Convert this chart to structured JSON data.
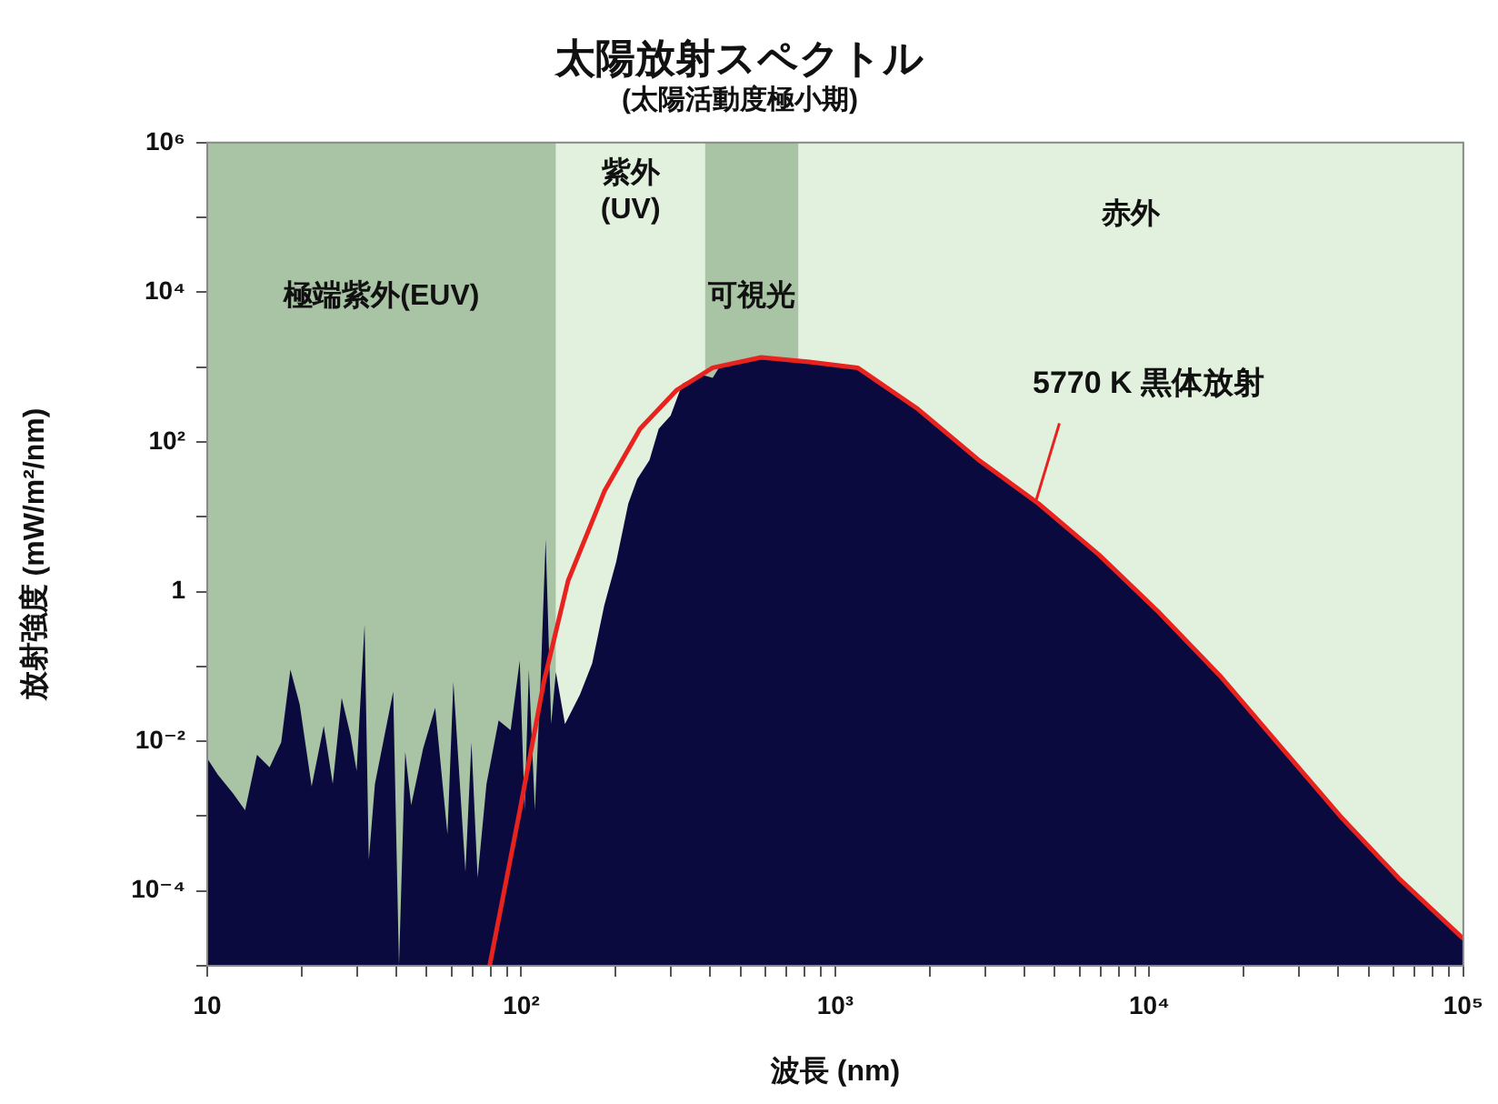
{
  "chart_data": {
    "type": "area",
    "title": "太陽放射スペクトル",
    "subtitle": "(太陽活動度極小期)",
    "xlabel": "波長 (nm)",
    "ylabel": "放射強度 (mW/m²/nm)",
    "log": "xy",
    "xlim": [
      10,
      100000
    ],
    "ylim": [
      1e-05,
      1000000
    ],
    "xticks": [
      10,
      {
        "value": 20,
        "label": null
      },
      {
        "value": 30,
        "label": null
      },
      {
        "value": 40,
        "label": null
      },
      {
        "value": 50,
        "label": null
      },
      {
        "value": 60,
        "label": null
      },
      {
        "value": 70,
        "label": null
      },
      {
        "value": 80,
        "label": null
      },
      {
        "value": 90,
        "label": null
      },
      {
        "value": 100,
        "label": "10²"
      },
      {
        "value": 200,
        "label": null
      },
      {
        "value": 300,
        "label": null
      },
      {
        "value": 400,
        "label": null
      },
      {
        "value": 500,
        "label": null
      },
      {
        "value": 600,
        "label": null
      },
      {
        "value": 700,
        "label": null
      },
      {
        "value": 800,
        "label": null
      },
      {
        "value": 900,
        "label": null
      },
      {
        "value": 1000,
        "label": "10³"
      },
      {
        "value": 2000,
        "label": null
      },
      {
        "value": 3000,
        "label": null
      },
      {
        "value": 4000,
        "label": null
      },
      {
        "value": 5000,
        "label": null
      },
      {
        "value": 6000,
        "label": null
      },
      {
        "value": 7000,
        "label": null
      },
      {
        "value": 8000,
        "label": null
      },
      {
        "value": 9000,
        "label": null
      },
      {
        "value": 10000,
        "label": "10⁴"
      },
      {
        "value": 20000,
        "label": null
      },
      {
        "value": 30000,
        "label": null
      },
      {
        "value": 40000,
        "label": null
      },
      {
        "value": 50000,
        "label": null
      },
      {
        "value": 60000,
        "label": null
      },
      {
        "value": 70000,
        "label": null
      },
      {
        "value": 80000,
        "label": null
      },
      {
        "value": 90000,
        "label": null
      },
      {
        "value": 100000,
        "label": "10⁵"
      }
    ],
    "yticks": [
      {
        "value": 1e-05,
        "label": null
      },
      {
        "value": 0.0001,
        "label": "10⁻⁴"
      },
      {
        "value": 0.001,
        "label": null
      },
      {
        "value": 0.01,
        "label": "10⁻²"
      },
      {
        "value": 0.1,
        "label": null
      },
      1,
      {
        "value": 10,
        "label": null
      },
      {
        "value": 100,
        "label": "10²"
      },
      {
        "value": 1000,
        "label": null
      },
      {
        "value": 10000,
        "label": "10⁴"
      },
      {
        "value": 100000,
        "label": null
      },
      {
        "value": 1000000,
        "label": "10⁶"
      }
    ],
    "series": [
      {
        "color": "#0b0a3f",
        "x": [
          10,
          10.8,
          12.1,
          13.2,
          14.4,
          15.8,
          17.2,
          18.4,
          19.7,
          21.5,
          23.5,
          25.1,
          26.8,
          28.6,
          29.9,
          31.7,
          32.7,
          34.2,
          39.1,
          40.8,
          42.7,
          44.6,
          48.7,
          53.2,
          58.2,
          60.8,
          66.4,
          69.4,
          72.6,
          77.5,
          84.7,
          92.5,
          98.9,
          102.5,
          105.7,
          110.5,
          115.4,
          119.6,
          124.5,
          128.9,
          137.8,
          153.8,
          168.2,
          183.7,
          200.6,
          219.2,
          234,
          256,
          274,
          299,
          326,
          373,
          407,
          426,
          486,
          581,
          827,
          1178,
          1833,
          2851,
          4436,
          6918,
          10770,
          16750,
          26060,
          40550,
          63100,
          100000
        ],
        "values": [
          0.0059,
          0.0036,
          0.002,
          0.0012,
          0.0066,
          0.0045,
          0.0097,
          0.091,
          0.031,
          0.0025,
          0.016,
          0.0027,
          0.038,
          0.012,
          0.004,
          0.36,
          0.00026,
          0.0027,
          0.046,
          1e-05,
          0.0072,
          0.0014,
          0.008,
          0.028,
          0.00057,
          0.062,
          0.00018,
          0.0097,
          0.00015,
          0.0027,
          0.019,
          0.014,
          0.12,
          0.0012,
          0.091,
          0.0012,
          0.075,
          5,
          0.017,
          0.084,
          0.017,
          0.042,
          0.11,
          0.65,
          2.5,
          15,
          32,
          57,
          150,
          225,
          600,
          800,
          720,
          980,
          1180,
          1350,
          1170,
          980,
          275,
          58,
          15,
          3.1,
          0.52,
          0.076,
          0.0087,
          0.001,
          0.00014,
          2.3e-05
        ]
      },
      {
        "type": "line",
        "color": "#e8231f",
        "x": [
          79.3,
          99,
          118,
          141,
          184,
          239,
          312,
          407,
          581,
          827,
          1178,
          1833,
          2851,
          4436,
          6918,
          10770,
          16750,
          26060,
          40550,
          63100,
          100000
        ],
        "values": [
          1e-05,
          0.0012,
          0.062,
          1.4,
          22,
          150,
          490,
          980,
          1350,
          1170,
          980,
          275,
          58,
          15,
          3.1,
          0.52,
          0.076,
          0.0087,
          0.001,
          0.00014,
          2.3e-05
        ]
      }
    ],
    "bands": [
      {
        "axis": "x",
        "from": 10,
        "to": 129,
        "label": "極端紫外(EUV)",
        "color": "#a9c4a4"
      },
      {
        "axis": "x",
        "from": 129,
        "to": 385,
        "label": "紫外\n(UV)",
        "color": "#e2f1de"
      },
      {
        "axis": "x",
        "from": 385,
        "to": 764,
        "label": "可視光",
        "color": "#a9c4a4"
      },
      {
        "axis": "x",
        "from": 764,
        "to": 100000,
        "label": "赤外",
        "color": "#e2f1de"
      }
    ],
    "annotations": [
      {
        "text": "5770 K 黒体放射",
        "x": 4350,
        "y": 16
      }
    ]
  }
}
